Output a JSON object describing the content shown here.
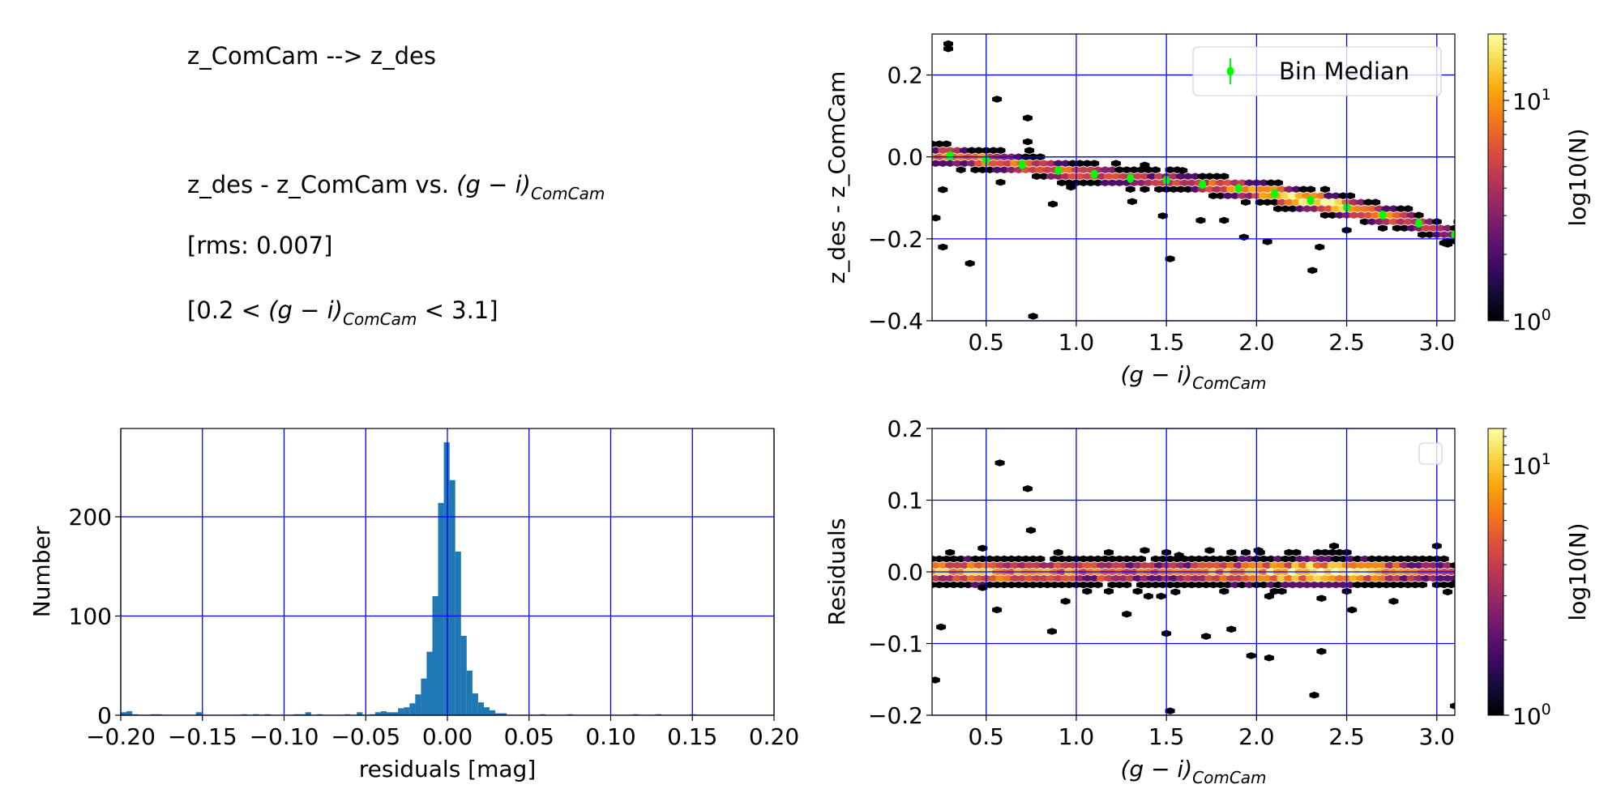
{
  "text_panel": {
    "title": "z_ComCam --> z_des",
    "relation_prefix": "z_des - z_ComCam vs. ",
    "color_main": "(g − i)",
    "color_sub": "ComCam",
    "rms": "[rms: 0.007]",
    "range_prefix": "[0.2 < ",
    "range_suffix": " < 3.1]"
  },
  "chart_data": [
    {
      "id": "trend",
      "type": "hexbin",
      "xlabel": {
        "main": "(g − i)",
        "sub": "ComCam"
      },
      "ylabel": "z_des - z_ComCam",
      "xlim": [
        0.2,
        3.1
      ],
      "ylim": [
        -0.4,
        0.3
      ],
      "grid": true,
      "xticks": [
        {
          "v": 0.5,
          "label": "0.5"
        },
        {
          "v": 1.0,
          "label": "1.0"
        },
        {
          "v": 1.5,
          "label": "1.5"
        },
        {
          "v": 2.0,
          "label": "2.0"
        },
        {
          "v": 2.5,
          "label": "2.5"
        },
        {
          "v": 3.0,
          "label": "3.0"
        }
      ],
      "yticks": [
        {
          "v": 0.2,
          "label": "0.2"
        },
        {
          "v": 0.0,
          "label": "0.0"
        },
        {
          "v": -0.2,
          "label": "−0.2"
        },
        {
          "v": -0.4,
          "label": "−0.4"
        }
      ],
      "colorbar": {
        "label": "log10(N)",
        "vmin": 1,
        "vmax": 20,
        "ticks": [
          {
            "v": 1,
            "base": "10",
            "exp": "0"
          },
          {
            "v": 10,
            "base": "10",
            "exp": "1"
          }
        ]
      },
      "legend": {
        "label": "Bin Median",
        "placement": "top-right",
        "color": "#00ff00"
      },
      "bin_median": {
        "x": [
          0.3,
          0.5,
          0.7,
          0.9,
          1.1,
          1.3,
          1.5,
          1.7,
          1.9,
          2.1,
          2.3,
          2.5,
          2.7,
          2.9,
          3.1
        ],
        "y": [
          0.003,
          -0.007,
          -0.019,
          -0.033,
          -0.042,
          -0.052,
          -0.057,
          -0.067,
          -0.077,
          -0.09,
          -0.106,
          -0.123,
          -0.142,
          -0.162,
          -0.19
        ]
      },
      "band": {
        "x": [
          0.25,
          0.5,
          0.7,
          0.9,
          1.1,
          1.3,
          1.5,
          1.7,
          1.9,
          2.1,
          2.3,
          2.5,
          2.7,
          2.9,
          3.1
        ],
        "peak_count": [
          8,
          9,
          7,
          7,
          6,
          5,
          5,
          6,
          9,
          12,
          18,
          14,
          9,
          5,
          3
        ],
        "sigma": 0.011
      },
      "outliers": [
        [
          0.29,
          0.276
        ],
        [
          0.29,
          0.264
        ],
        [
          0.56,
          0.141
        ],
        [
          0.73,
          0.095
        ],
        [
          0.73,
          0.037
        ],
        [
          0.26,
          -0.08
        ],
        [
          0.22,
          -0.149
        ],
        [
          0.26,
          -0.22
        ],
        [
          0.41,
          -0.26
        ],
        [
          0.76,
          -0.389
        ],
        [
          0.58,
          -0.062
        ],
        [
          0.87,
          -0.115
        ],
        [
          0.97,
          -0.074
        ],
        [
          1.31,
          -0.109
        ],
        [
          1.48,
          -0.144
        ],
        [
          1.52,
          -0.249
        ],
        [
          1.69,
          -0.155
        ],
        [
          1.82,
          -0.155
        ],
        [
          1.93,
          -0.196
        ],
        [
          2.06,
          -0.207
        ],
        [
          2.31,
          -0.277
        ],
        [
          2.35,
          -0.22
        ],
        [
          2.5,
          -0.179
        ],
        [
          3.04,
          -0.21
        ],
        [
          3.06,
          -0.213
        ],
        [
          1.59,
          -0.033
        ],
        [
          1.38,
          -0.02
        ]
      ]
    },
    {
      "id": "histogram",
      "type": "bar",
      "xlabel": "residuals [mag]",
      "ylabel": "Number",
      "xlim": [
        -0.2,
        0.2
      ],
      "ylim": [
        0,
        289
      ],
      "grid": true,
      "bin_width": 0.0035,
      "color": "#1f77b4",
      "xticks": [
        {
          "v": -0.2,
          "label": "−0.20"
        },
        {
          "v": -0.15,
          "label": "−0.15"
        },
        {
          "v": -0.1,
          "label": "−0.10"
        },
        {
          "v": -0.05,
          "label": "−0.05"
        },
        {
          "v": 0,
          "label": "0.00"
        },
        {
          "v": 0.05,
          "label": "0.05"
        },
        {
          "v": 0.1,
          "label": "0.10"
        },
        {
          "v": 0.15,
          "label": "0.15"
        },
        {
          "v": 0.2,
          "label": "0.20"
        }
      ],
      "yticks": [
        {
          "v": 0,
          "label": "0"
        },
        {
          "v": 100,
          "label": "100"
        },
        {
          "v": 200,
          "label": "200"
        }
      ],
      "bins": [
        [
          -0.2,
          3
        ],
        [
          -0.1965,
          4
        ],
        [
          -0.193,
          1
        ],
        [
          -0.182,
          1
        ],
        [
          -0.1785,
          1
        ],
        [
          -0.154,
          3
        ],
        [
          -0.126,
          1
        ],
        [
          -0.119,
          1
        ],
        [
          -0.112,
          1
        ],
        [
          -0.094,
          1
        ],
        [
          -0.0905,
          1
        ],
        [
          -0.087,
          3
        ],
        [
          -0.08,
          1
        ],
        [
          -0.063,
          1
        ],
        [
          -0.0555,
          3
        ],
        [
          -0.0477,
          1
        ],
        [
          -0.0442,
          3
        ],
        [
          -0.0407,
          4
        ],
        [
          -0.0372,
          3
        ],
        [
          -0.0337,
          3
        ],
        [
          -0.0302,
          7
        ],
        [
          -0.0267,
          8
        ],
        [
          -0.0232,
          12
        ],
        [
          -0.0197,
          21
        ],
        [
          -0.0162,
          37
        ],
        [
          -0.0127,
          64
        ],
        [
          -0.0092,
          120
        ],
        [
          -0.0057,
          214
        ],
        [
          -0.0022,
          275
        ],
        [
          0.0013,
          237
        ],
        [
          0.0048,
          165
        ],
        [
          0.0083,
          80
        ],
        [
          0.0118,
          45
        ],
        [
          0.0153,
          22
        ],
        [
          0.0188,
          13
        ],
        [
          0.0223,
          8
        ],
        [
          0.0258,
          5
        ],
        [
          0.0293,
          2
        ],
        [
          0.0328,
          2
        ],
        [
          0.0565,
          1
        ],
        [
          0.0735,
          1
        ],
        [
          0.1135,
          1
        ],
        [
          0.1275,
          1
        ],
        [
          0.1485,
          1
        ]
      ]
    },
    {
      "id": "residuals",
      "type": "hexbin",
      "xlabel": {
        "main": "(g − i)",
        "sub": "ComCam"
      },
      "ylabel": "Residuals",
      "xlim": [
        0.2,
        3.1
      ],
      "ylim": [
        -0.2,
        0.2
      ],
      "grid": true,
      "xticks": [
        {
          "v": 0.5,
          "label": "0.5"
        },
        {
          "v": 1.0,
          "label": "1.0"
        },
        {
          "v": 1.5,
          "label": "1.5"
        },
        {
          "v": 2.0,
          "label": "2.0"
        },
        {
          "v": 2.5,
          "label": "2.5"
        },
        {
          "v": 3.0,
          "label": "3.0"
        }
      ],
      "yticks": [
        {
          "v": 0.2,
          "label": "0.2"
        },
        {
          "v": 0.1,
          "label": "0.1"
        },
        {
          "v": 0.0,
          "label": "0.0"
        },
        {
          "v": -0.1,
          "label": "−0.1"
        },
        {
          "v": -0.2,
          "label": "−0.2"
        }
      ],
      "colorbar": {
        "label": "log10(N)",
        "vmin": 1,
        "vmax": 14,
        "ticks": [
          {
            "v": 1,
            "base": "10",
            "exp": "0"
          },
          {
            "v": 10,
            "base": "10",
            "exp": "1"
          }
        ]
      },
      "legend": {
        "label": "",
        "placement": "top-right"
      },
      "band": {
        "x": [
          0.25,
          0.5,
          0.7,
          0.9,
          1.1,
          1.3,
          1.5,
          1.7,
          1.9,
          2.1,
          2.3,
          2.5,
          2.7,
          2.9,
          3.1
        ],
        "peak_count": [
          8,
          9,
          7,
          7,
          6,
          5,
          5,
          6,
          9,
          11,
          14,
          12,
          8,
          5,
          3
        ],
        "sigma": 0.009
      },
      "outliers": [
        [
          0.576,
          0.152
        ],
        [
          0.73,
          0.116
        ],
        [
          0.748,
          0.058
        ],
        [
          0.48,
          0.033
        ],
        [
          0.48,
          -0.022
        ],
        [
          0.56,
          -0.053
        ],
        [
          0.25,
          -0.077
        ],
        [
          0.217,
          -0.151
        ],
        [
          0.865,
          -0.083
        ],
        [
          0.94,
          -0.041
        ],
        [
          1.28,
          -0.059
        ],
        [
          1.38,
          0.03
        ],
        [
          1.4,
          -0.034
        ],
        [
          1.47,
          -0.034
        ],
        [
          1.5,
          -0.086
        ],
        [
          1.52,
          -0.194
        ],
        [
          1.55,
          -0.028
        ],
        [
          1.57,
          0.023
        ],
        [
          1.72,
          -0.09
        ],
        [
          1.74,
          0.03
        ],
        [
          1.86,
          -0.08
        ],
        [
          1.97,
          -0.117
        ],
        [
          2.01,
          0.03
        ],
        [
          2.07,
          -0.034
        ],
        [
          2.07,
          -0.12
        ],
        [
          2.32,
          -0.172
        ],
        [
          2.36,
          -0.111
        ],
        [
          2.36,
          -0.037
        ],
        [
          2.43,
          0.036
        ],
        [
          2.53,
          -0.053
        ],
        [
          2.76,
          -0.041
        ],
        [
          3.0,
          0.036
        ],
        [
          3.06,
          -0.028
        ],
        [
          3.1,
          -0.187
        ],
        [
          3.1,
          -0.016
        ]
      ]
    }
  ]
}
